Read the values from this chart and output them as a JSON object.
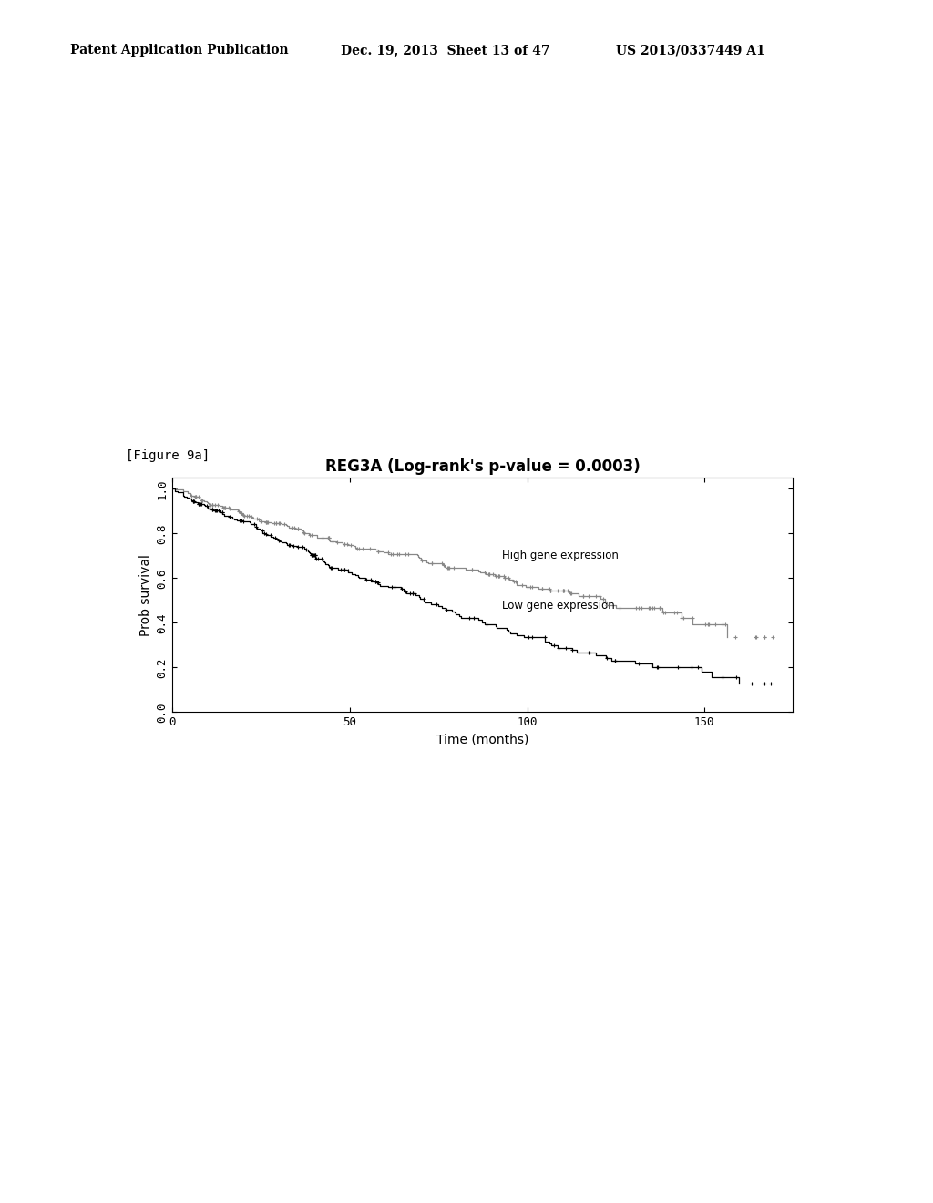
{
  "title": "REG3A (Log-rank's p-value = 0.0003)",
  "xlabel": "Time (months)",
  "ylabel": "Prob survival",
  "figure_label": "[Figure 9a]",
  "header_left": "Patent Application Publication",
  "header_mid": "Dec. 19, 2013  Sheet 13 of 47",
  "header_right": "US 2013/0337449 A1",
  "xlim": [
    0,
    175
  ],
  "ylim": [
    0.0,
    1.05
  ],
  "xticks": [
    0,
    50,
    100,
    150
  ],
  "yticks": [
    0.0,
    0.2,
    0.4,
    0.6,
    0.8,
    1.0
  ],
  "ytick_labels": [
    "0.0",
    "0.2",
    "0.4",
    "0.6",
    "0.8",
    "1.0"
  ],
  "xtick_labels": [
    "0",
    "50",
    "100",
    "150"
  ],
  "high_label": "High gene expression",
  "low_label": "Low gene expression",
  "high_color": "#888888",
  "low_color": "#000000",
  "background_color": "#ffffff",
  "title_fontsize": 12,
  "label_fontsize": 10,
  "tick_fontsize": 9,
  "header_fontsize": 10
}
